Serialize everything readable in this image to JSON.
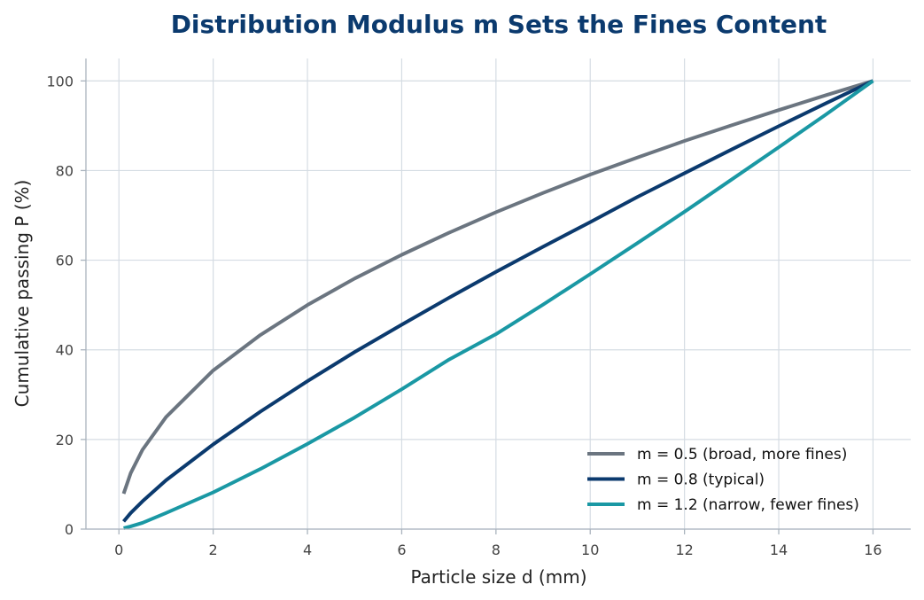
{
  "chart_data": {
    "type": "line",
    "title": "Distribution Modulus m Sets the Fines Content",
    "xlabel": "Particle size  d (mm)",
    "ylabel": "Cumulative passing  P (%)",
    "xlim": [
      -0.7,
      16.8
    ],
    "ylim": [
      0,
      105
    ],
    "xticks": [
      0,
      2,
      4,
      6,
      8,
      10,
      12,
      14,
      16
    ],
    "yticks": [
      0,
      20,
      40,
      60,
      80,
      100
    ],
    "grid": true,
    "legend_position": "lower-right",
    "series": [
      {
        "name": "m = 0.5 (broad, more fines)",
        "color": "#6b7580",
        "x": [
          0.1,
          0.25,
          0.5,
          1,
          2,
          3,
          4,
          5,
          6,
          7,
          8,
          9,
          10,
          11,
          12,
          13,
          14,
          15,
          16
        ],
        "y": [
          7.9,
          12.5,
          17.7,
          25.0,
          35.4,
          43.3,
          50.0,
          55.9,
          61.2,
          66.1,
          70.7,
          75.0,
          79.1,
          82.9,
          86.6,
          90.1,
          93.5,
          96.8,
          100.0
        ]
      },
      {
        "name": "m = 0.8 (typical)",
        "color": "#0b3a6e",
        "x": [
          0.1,
          0.25,
          0.5,
          1,
          2,
          3,
          4,
          5,
          6,
          7,
          8,
          9,
          10,
          11,
          12,
          13,
          14,
          15,
          16
        ],
        "y": [
          1.7,
          3.6,
          6.2,
          10.9,
          18.9,
          26.2,
          33.0,
          39.5,
          45.6,
          51.6,
          57.4,
          63.0,
          68.5,
          74.1,
          79.4,
          84.7,
          89.9,
          95.0,
          100.0
        ]
      },
      {
        "name": "m = 1.2 (narrow, fewer fines)",
        "color": "#1a98a4",
        "x": [
          0.1,
          0.25,
          0.5,
          1,
          2,
          3,
          4,
          5,
          6,
          7,
          8,
          9,
          10,
          11,
          12,
          13,
          14,
          15,
          16
        ],
        "y": [
          0.2,
          0.6,
          1.4,
          3.6,
          8.2,
          13.4,
          19.0,
          24.9,
          31.2,
          37.8,
          43.5,
          50.1,
          56.9,
          63.8,
          70.8,
          78.0,
          85.2,
          92.5,
          100.0
        ]
      }
    ]
  }
}
